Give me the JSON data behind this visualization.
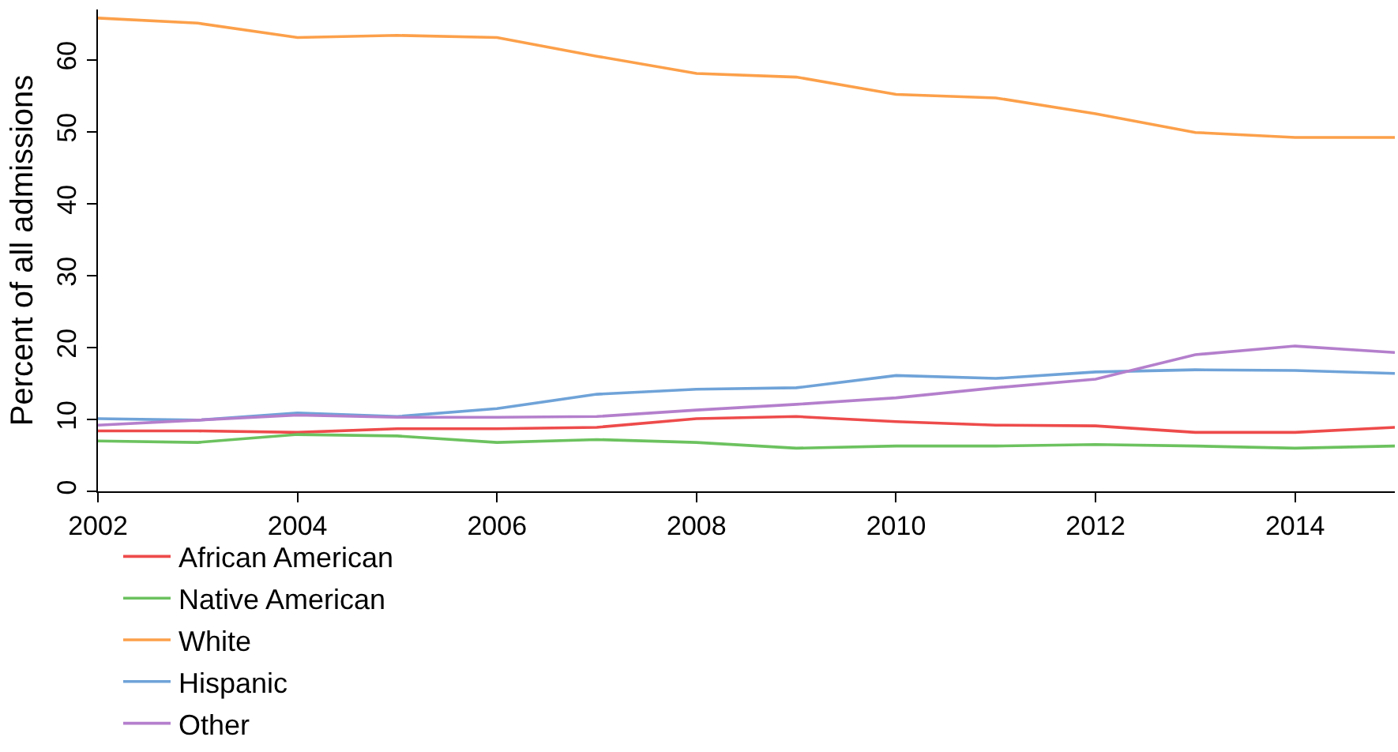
{
  "chart_data": {
    "type": "line",
    "ylabel": "Percent of all admissions",
    "x": [
      2002,
      2003,
      2004,
      2005,
      2006,
      2007,
      2008,
      2009,
      2010,
      2011,
      2012,
      2013,
      2014,
      2015
    ],
    "series": [
      {
        "name": "African American",
        "color": "#ee4b4b",
        "values": [
          8.4,
          8.4,
          8.2,
          8.7,
          8.7,
          8.9,
          10.1,
          10.4,
          9.7,
          9.2,
          9.1,
          8.2,
          8.2,
          8.9
        ]
      },
      {
        "name": "Native American",
        "color": "#6cc25f",
        "values": [
          7.0,
          6.8,
          7.9,
          7.7,
          6.8,
          7.2,
          6.8,
          6.0,
          6.3,
          6.3,
          6.5,
          6.3,
          6.0,
          6.3
        ]
      },
      {
        "name": "White",
        "color": "#fca04a",
        "values": [
          65.8,
          65.1,
          63.1,
          63.4,
          63.1,
          60.5,
          58.1,
          57.6,
          55.2,
          54.7,
          52.5,
          49.9,
          49.2,
          49.2
        ]
      },
      {
        "name": "Hispanic",
        "color": "#6fa3d8",
        "values": [
          10.1,
          9.9,
          10.9,
          10.4,
          11.5,
          13.5,
          14.2,
          14.4,
          16.1,
          15.7,
          16.6,
          16.9,
          16.8,
          16.4
        ]
      },
      {
        "name": "Other",
        "color": "#b47fcc",
        "values": [
          9.2,
          9.9,
          10.6,
          10.3,
          10.3,
          10.4,
          11.3,
          12.1,
          13.0,
          14.4,
          15.6,
          19.0,
          20.2,
          19.3
        ]
      }
    ],
    "xlim": [
      2002,
      2015
    ],
    "xticks": [
      2002,
      2004,
      2006,
      2008,
      2010,
      2012,
      2014
    ],
    "ylim": [
      0,
      67
    ],
    "yticks": [
      0,
      10,
      20,
      30,
      40,
      50,
      60
    ],
    "grid": false,
    "legend": "bottom",
    "marker": "none",
    "line_style": "solid"
  }
}
